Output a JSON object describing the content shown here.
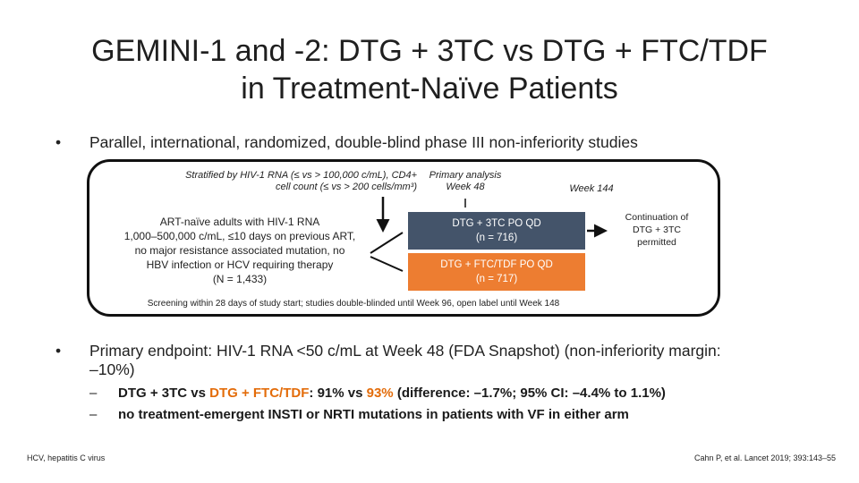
{
  "title": {
    "line1": "GEMINI-1 and -2: DTG + 3TC vs DTG + FTC/TDF",
    "line2": "in Treatment-Naïve Patients"
  },
  "bullets": [
    {
      "marker": "•",
      "text": "Parallel, international, randomized, double-blind phase III non-inferiority studies"
    },
    {
      "marker": "•",
      "text": "Primary endpoint: HIV-1 RNA <50 c/mL at Week 48 (FDA Snapshot) (non-inferiority margin: –10%)"
    }
  ],
  "diagram": {
    "stratification": [
      "Stratified by HIV-1 RNA (≤ vs > 100,000 c/mL), CD4+",
      "cell count (≤ vs > 200 cells/mm³)"
    ],
    "primary_analysis": [
      "Primary analysis",
      "Week 48"
    ],
    "week144": "Week 144",
    "population": [
      "ART-naïve adults with HIV-1 RNA",
      "1,000–500,000 c/mL, ≤10 days on previous ART,",
      "no major resistance associated mutation, no",
      "HBV infection or HCV requiring therapy",
      "(N = 1,433)"
    ],
    "arm1": {
      "label": "DTG + 3TC PO QD",
      "n": "(n = 716)",
      "color": "#44546a"
    },
    "arm2": {
      "label": "DTG + FTC/TDF PO QD",
      "n": "(n = 717)",
      "color": "#ed7d31"
    },
    "continuation": [
      "Continuation of",
      "DTG + 3TC",
      "permitted"
    ],
    "screening": "Screening within 28 days of study start; studies double-blinded until Week 96, open label until Week 148"
  },
  "subbullets": {
    "dash": "–",
    "s1": {
      "a": "DTG + 3TC",
      "b": " vs ",
      "c": "DTG + FTC/TDF",
      "d": ": ",
      "e": "91%",
      "f": " vs ",
      "g": "93%",
      "h": " (difference: –1.7%; 95% CI: –4.4% to 1.1%)"
    },
    "s2": "no treatment-emergent INSTI or NRTI mutations in patients with VF in either arm"
  },
  "footer": {
    "left": "HCV, hepatitis C virus",
    "right": "Cahn P, et al. Lancet 2019; 393:143–55"
  }
}
